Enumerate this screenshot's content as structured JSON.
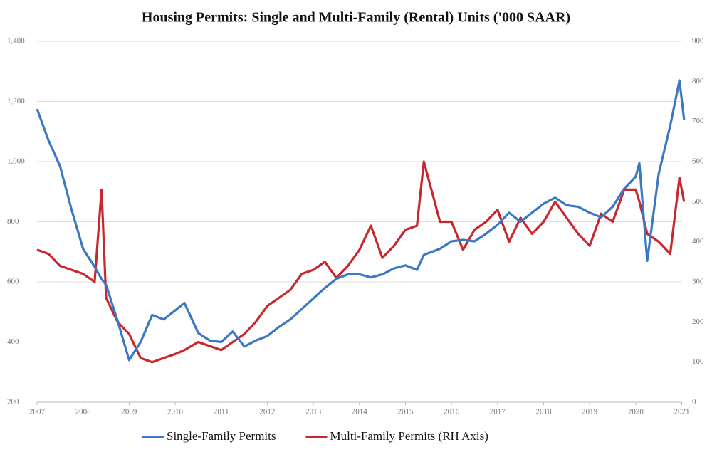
{
  "chart_data": {
    "type": "line",
    "title": "Housing Permits: Single and Multi-Family  (Rental) Units  ('000 SAAR)",
    "x": [
      2007.0,
      2007.25,
      2007.5,
      2007.75,
      2008.0,
      2008.25,
      2008.4,
      2008.5,
      2008.75,
      2009.0,
      2009.25,
      2009.5,
      2009.75,
      2010.0,
      2010.2,
      2010.5,
      2010.75,
      2011.0,
      2011.25,
      2011.5,
      2011.75,
      2012.0,
      2012.25,
      2012.5,
      2012.75,
      2013.0,
      2013.25,
      2013.5,
      2013.75,
      2014.0,
      2014.25,
      2014.5,
      2014.75,
      2015.0,
      2015.25,
      2015.4,
      2015.75,
      2016.0,
      2016.25,
      2016.5,
      2016.75,
      2017.0,
      2017.25,
      2017.5,
      2017.75,
      2018.0,
      2018.25,
      2018.5,
      2018.75,
      2019.0,
      2019.25,
      2019.5,
      2019.75,
      2020.0,
      2020.08,
      2020.25,
      2020.5,
      2020.75,
      2020.95,
      2021.05
    ],
    "xlim": [
      2007,
      2021.1
    ],
    "xticks": [
      2007,
      2008,
      2009,
      2010,
      2011,
      2012,
      2013,
      2014,
      2015,
      2016,
      2017,
      2018,
      2019,
      2020,
      2021
    ],
    "ylim": [
      200,
      1400
    ],
    "yticks": [
      200,
      400,
      600,
      800,
      {
        "value": 1000,
        "label": "1,000"
      },
      {
        "value": 1200,
        "label": "1,200"
      },
      {
        "value": 1400,
        "label": "1,400"
      }
    ],
    "y2lim": [
      0,
      900
    ],
    "y2ticks": [
      0,
      100,
      200,
      300,
      400,
      500,
      600,
      700,
      800,
      900
    ],
    "grid": true,
    "legend": "bottom",
    "series": [
      {
        "name": "Single-Family Permits",
        "color": "#3a78c3",
        "values": [
          1175,
          1070,
          985,
          840,
          710,
          650,
          610,
          590,
          470,
          340,
          400,
          490,
          475,
          505,
          530,
          430,
          405,
          400,
          435,
          385,
          405,
          420,
          450,
          475,
          510,
          545,
          580,
          610,
          625,
          625,
          615,
          625,
          645,
          655,
          640,
          690,
          710,
          735,
          740,
          735,
          760,
          790,
          830,
          800,
          830,
          860,
          880,
          855,
          850,
          830,
          815,
          850,
          910,
          950,
          995,
          670,
          960,
          1120,
          1270,
          1140
        ]
      },
      {
        "name": "Multi-Family Permits (RH Axis)",
        "color": "#c8282d",
        "axis": "y2",
        "values": [
          380,
          370,
          340,
          330,
          320,
          300,
          530,
          260,
          200,
          170,
          110,
          100,
          110,
          120,
          130,
          150,
          140,
          130,
          150,
          170,
          200,
          240,
          260,
          280,
          320,
          330,
          350,
          310,
          340,
          380,
          440,
          360,
          390,
          430,
          440,
          600,
          450,
          450,
          380,
          430,
          450,
          480,
          400,
          460,
          420,
          450,
          500,
          460,
          420,
          390,
          470,
          450,
          530,
          530,
          500,
          420,
          400,
          370,
          560,
          500
        ]
      }
    ]
  }
}
